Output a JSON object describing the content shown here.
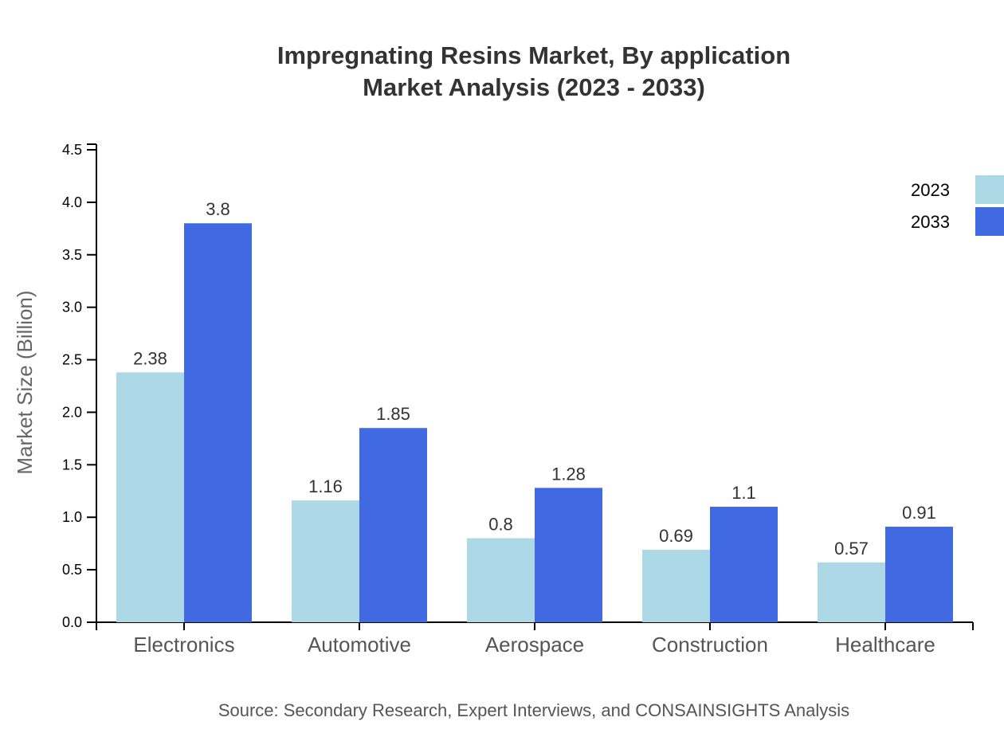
{
  "chart_data": {
    "type": "bar",
    "title": "Impregnating Resins Market, By application",
    "subtitle": "Market Analysis (2023 - 2033)",
    "xlabel": "",
    "ylabel": "Market Size (Billion)",
    "ylim": [
      0,
      4.5
    ],
    "yticks": [
      "0.0",
      "0.5",
      "1.0",
      "1.5",
      "2.0",
      "2.5",
      "3.0",
      "3.5",
      "4.0",
      "4.5"
    ],
    "categories": [
      "Electronics",
      "Automotive",
      "Aerospace",
      "Construction",
      "Healthcare"
    ],
    "series": [
      {
        "name": "2023",
        "color": "#ADD8E6",
        "values": [
          2.38,
          1.16,
          0.8,
          0.69,
          0.57
        ]
      },
      {
        "name": "2033",
        "color": "#4169E1",
        "values": [
          3.8,
          1.85,
          1.28,
          1.1,
          0.91
        ]
      }
    ],
    "data_labels": true,
    "legend_position": "top-right",
    "grid": false,
    "source": "Source: Secondary Research, Expert Interviews, and CONSAINSIGHTS Analysis"
  }
}
